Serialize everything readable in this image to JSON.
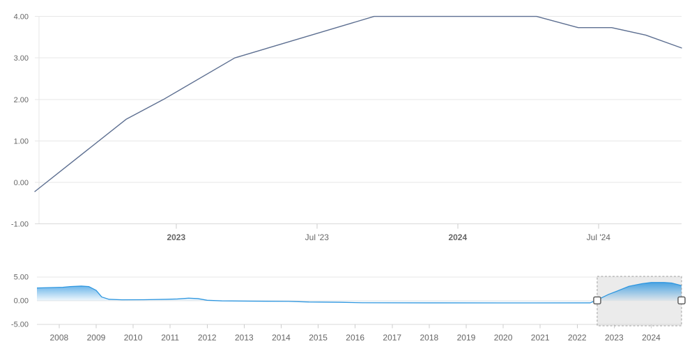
{
  "colors": {
    "background": "#ffffff",
    "main_line": "#5d6f91",
    "nav_line": "#2f97e0",
    "nav_fill_top": "rgba(47,151,224,0.88)",
    "nav_fill_bottom": "rgba(47,151,224,0.04)",
    "gridline": "#e7e7e7",
    "axis_line": "#d9d9d9",
    "tick": "#cccccc",
    "label": "#666666",
    "selection_fill": "rgba(110,110,110,0.14)",
    "selection_border": "#9f9f9f",
    "handle_fill": "#ffffff",
    "handle_border": "#5f5f5f"
  },
  "chart_data": [
    {
      "type": "line",
      "name": "main-rate-chart",
      "grid": "horizontal",
      "legend": "none",
      "x_range": [
        2022.498,
        2024.795
      ],
      "ylim": [
        -1.0,
        4.2
      ],
      "y_ticks": [
        {
          "label": "4.00",
          "value": 4
        },
        {
          "label": "3.00",
          "value": 3
        },
        {
          "label": "2.00",
          "value": 2
        },
        {
          "label": "1.00",
          "value": 1
        },
        {
          "label": "0.00",
          "value": 0
        },
        {
          "label": "-1.00",
          "value": -1
        }
      ],
      "x_ticks": [
        {
          "label": "2023",
          "value": 2023,
          "bold": true
        },
        {
          "label": "Jul '23",
          "value": 2023.5,
          "bold": false
        },
        {
          "label": "2024",
          "value": 2024,
          "bold": true
        },
        {
          "label": "Jul '24",
          "value": 2024.5,
          "bold": false
        }
      ],
      "series": [
        {
          "name": "rate",
          "points": [
            [
              2022.498,
              -0.22
            ],
            [
              2022.822,
              1.52
            ],
            [
              2022.955,
              2.0
            ],
            [
              2023.208,
              3.0
            ],
            [
              2023.703,
              4.0
            ],
            [
              2024.28,
              4.0
            ],
            [
              2024.428,
              3.73
            ],
            [
              2024.547,
              3.73
            ],
            [
              2024.668,
              3.55
            ],
            [
              2024.795,
              3.24
            ]
          ]
        }
      ]
    },
    {
      "type": "area",
      "name": "navigator-chart",
      "grid": "horizontal",
      "legend": "none",
      "x_range": [
        2007.4,
        2024.82
      ],
      "ylim": [
        -5.2,
        5.2
      ],
      "y_ticks": [
        {
          "label": "5.00",
          "value": 5
        },
        {
          "label": "0.00",
          "value": 0
        },
        {
          "label": "-5.00",
          "value": -5
        }
      ],
      "x_ticks": [
        {
          "label": "2008",
          "value": 2008
        },
        {
          "label": "2009",
          "value": 2009
        },
        {
          "label": "2010",
          "value": 2010
        },
        {
          "label": "2011",
          "value": 2011
        },
        {
          "label": "2012",
          "value": 2012
        },
        {
          "label": "2013",
          "value": 2013
        },
        {
          "label": "2014",
          "value": 2014
        },
        {
          "label": "2015",
          "value": 2015
        },
        {
          "label": "2016",
          "value": 2016
        },
        {
          "label": "2017",
          "value": 2017
        },
        {
          "label": "2018",
          "value": 2018
        },
        {
          "label": "2019",
          "value": 2019
        },
        {
          "label": "2020",
          "value": 2020
        },
        {
          "label": "2021",
          "value": 2021
        },
        {
          "label": "2022",
          "value": 2022
        },
        {
          "label": "2023",
          "value": 2023
        },
        {
          "label": "2024",
          "value": 2024
        }
      ],
      "series": [
        {
          "name": "rate-history",
          "points": [
            [
              2007.4,
              2.7
            ],
            [
              2008.1,
              2.85
            ],
            [
              2008.3,
              3.0
            ],
            [
              2008.6,
              3.1
            ],
            [
              2008.8,
              3.0
            ],
            [
              2009.0,
              2.2
            ],
            [
              2009.15,
              0.8
            ],
            [
              2009.35,
              0.3
            ],
            [
              2009.7,
              0.2
            ],
            [
              2010.3,
              0.22
            ],
            [
              2010.9,
              0.3
            ],
            [
              2011.2,
              0.38
            ],
            [
              2011.5,
              0.55
            ],
            [
              2011.75,
              0.45
            ],
            [
              2012.0,
              0.1
            ],
            [
              2012.4,
              -0.03
            ],
            [
              2013.2,
              -0.08
            ],
            [
              2014.2,
              -0.13
            ],
            [
              2014.75,
              -0.27
            ],
            [
              2015.6,
              -0.32
            ],
            [
              2016.2,
              -0.42
            ],
            [
              2018.0,
              -0.45
            ],
            [
              2020.0,
              -0.46
            ],
            [
              2022.35,
              -0.45
            ],
            [
              2022.6,
              0.4
            ],
            [
              2022.85,
              1.35
            ],
            [
              2023.05,
              1.95
            ],
            [
              2023.4,
              3.05
            ],
            [
              2023.75,
              3.6
            ],
            [
              2024.0,
              3.85
            ],
            [
              2024.35,
              3.85
            ],
            [
              2024.55,
              3.75
            ],
            [
              2024.82,
              3.2
            ]
          ]
        }
      ],
      "selection": {
        "start": 2022.54,
        "end": 2024.82
      }
    }
  ]
}
